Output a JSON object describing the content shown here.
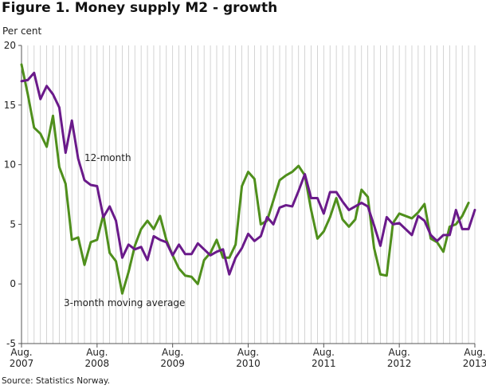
{
  "title": "Figure 1. Money supply M2 - growth",
  "source": "Source: Statistics Norway.",
  "chart_data": {
    "type": "line",
    "ylabel": "Per cent",
    "ylim": [
      -5,
      20
    ],
    "yticks": [
      -5,
      0,
      5,
      10,
      15,
      20
    ],
    "grid": "vertical monthly lines",
    "xtick_labels": [
      {
        "index": 0,
        "line1": "Aug.",
        "line2": "2007"
      },
      {
        "index": 12,
        "line1": "Aug.",
        "line2": "2008"
      },
      {
        "index": 24,
        "line1": "Aug.",
        "line2": "2009"
      },
      {
        "index": 36,
        "line1": "Aug.",
        "line2": "2010"
      },
      {
        "index": 48,
        "line1": "Aug.",
        "line2": "2011"
      },
      {
        "index": 60,
        "line1": "Aug.",
        "line2": "2012"
      },
      {
        "index": 72,
        "line1": "Aug.",
        "line2": "2013"
      }
    ],
    "x_start": "2007-08",
    "x_end": "2013-08",
    "series": [
      {
        "name": "12-month",
        "color": "#6a1a8a",
        "label_text": "12-month",
        "values": [
          17.0,
          17.1,
          17.7,
          15.5,
          16.6,
          15.9,
          14.8,
          11.0,
          13.7,
          10.5,
          8.7,
          8.3,
          8.2,
          5.6,
          6.5,
          5.3,
          2.2,
          3.3,
          2.9,
          3.1,
          2.0,
          4.0,
          3.7,
          3.5,
          2.4,
          3.3,
          2.5,
          2.5,
          3.4,
          2.9,
          2.4,
          2.7,
          2.9,
          0.8,
          2.2,
          3.0,
          4.2,
          3.6,
          4.0,
          5.6,
          5.0,
          6.4,
          6.6,
          6.5,
          7.8,
          9.2,
          7.2,
          7.2,
          5.9,
          7.7,
          7.7,
          6.9,
          6.2,
          6.5,
          6.8,
          6.5,
          4.9,
          3.2,
          5.6,
          5.0,
          5.1,
          4.6,
          4.1,
          5.7,
          5.3,
          4.1,
          3.6,
          4.1,
          4.1,
          6.2,
          4.6,
          4.6,
          6.2
        ]
      },
      {
        "name": "3-month moving average",
        "color": "#4f8f1c",
        "label_text": "3-month moving average",
        "values": [
          18.4,
          15.9,
          13.1,
          12.6,
          11.5,
          14.1,
          9.8,
          8.4,
          3.7,
          3.9,
          1.6,
          3.5,
          3.7,
          5.8,
          2.6,
          1.9,
          -0.8,
          1.0,
          3.2,
          4.6,
          5.3,
          4.6,
          5.7,
          3.7,
          2.4,
          1.3,
          0.7,
          0.6,
          0.0,
          2.0,
          2.6,
          3.7,
          2.2,
          2.2,
          3.3,
          8.2,
          9.4,
          8.8,
          5.0,
          5.3,
          7.0,
          8.7,
          9.1,
          9.4,
          9.9,
          9.1,
          6.2,
          3.8,
          4.4,
          5.6,
          7.2,
          5.4,
          4.8,
          5.4,
          7.9,
          7.3,
          3.0,
          0.8,
          0.7,
          5.1,
          5.9,
          5.7,
          5.5,
          6.0,
          6.7,
          3.8,
          3.5,
          2.7,
          4.8,
          5.0,
          5.7,
          6.8
        ]
      }
    ]
  }
}
